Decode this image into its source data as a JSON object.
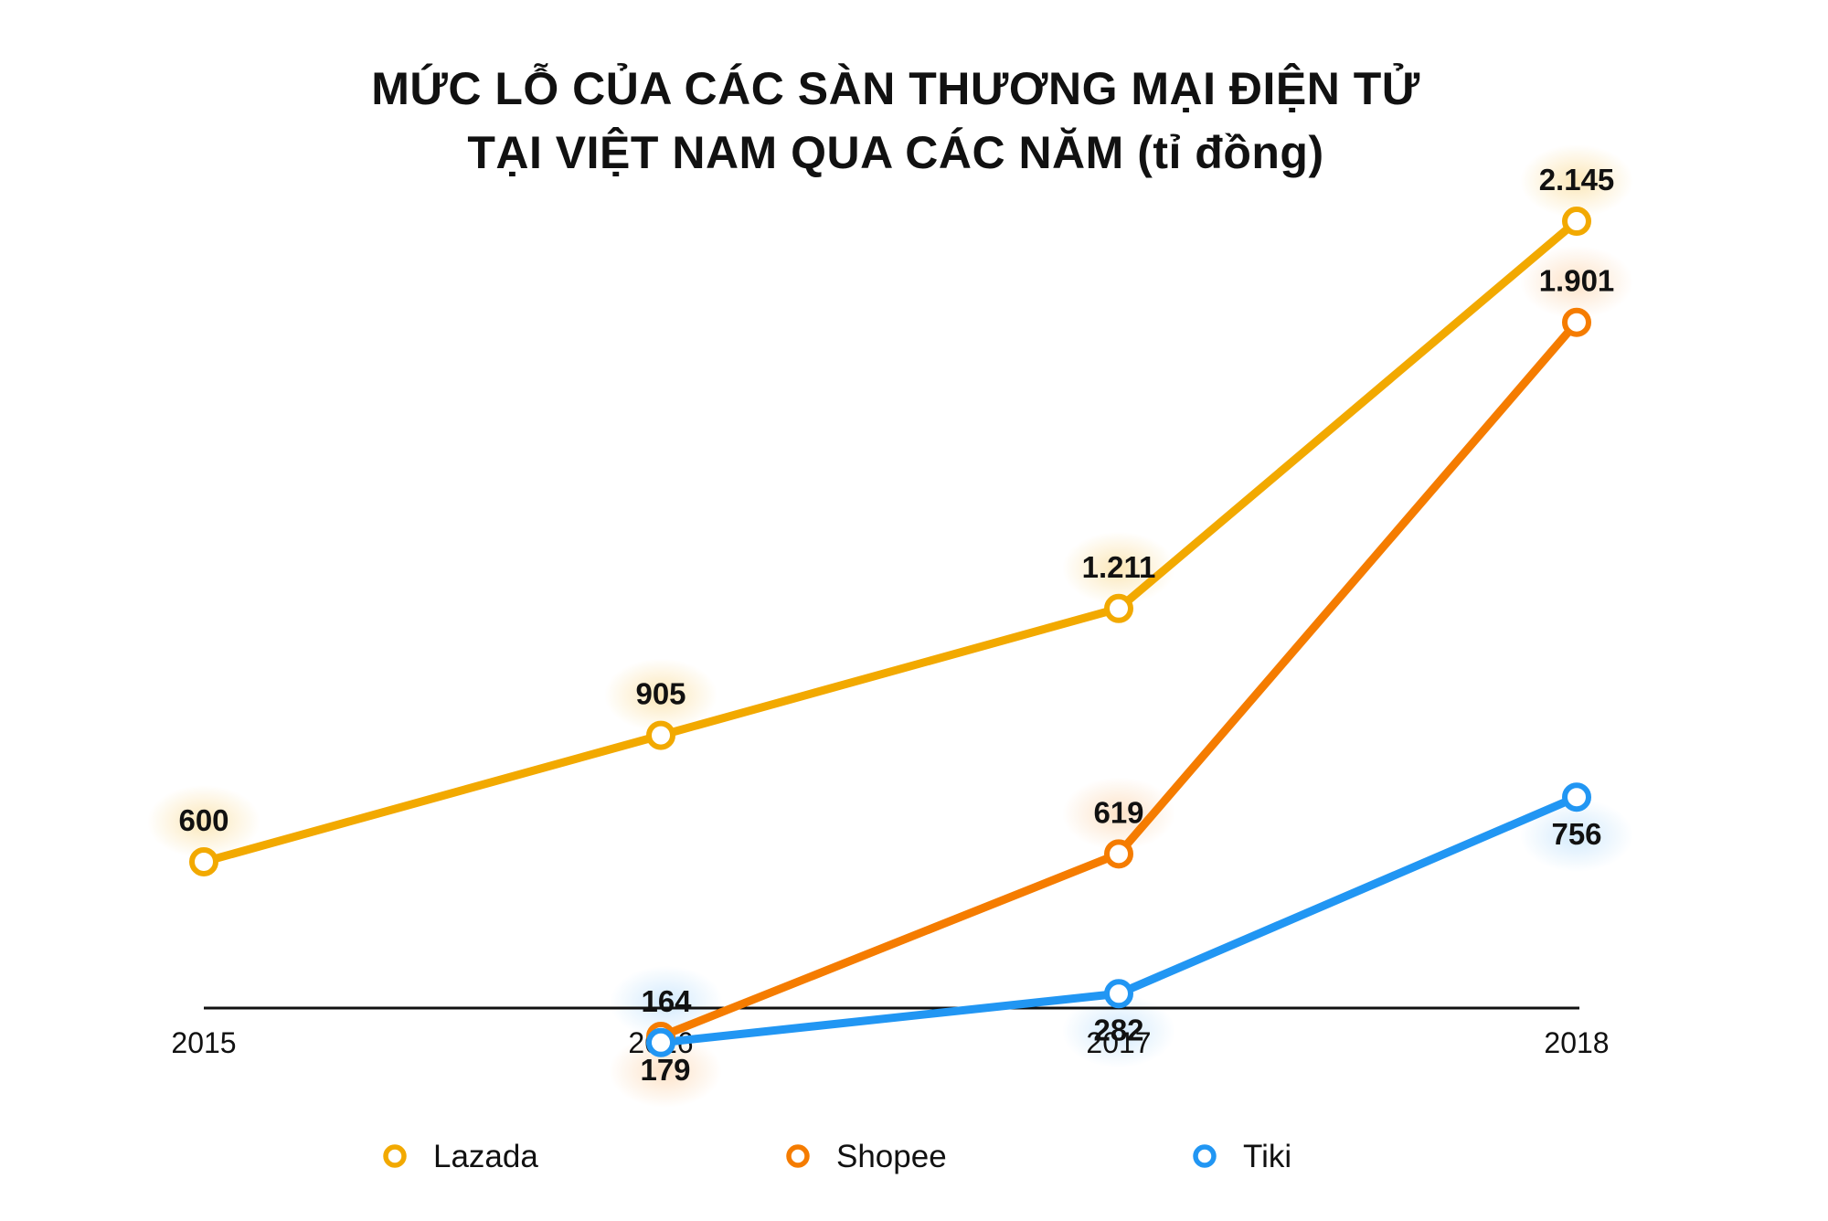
{
  "chart_data": {
    "type": "line",
    "title_lines": [
      "MỨC LỖ CỦA CÁC SÀN THƯƠNG MẠI ĐIỆN TỬ",
      "TẠI VIỆT NAM QUA CÁC NĂM (tỉ đồng)"
    ],
    "x": [
      "2015",
      "2016",
      "2017",
      "2018"
    ],
    "ylim": [
      0,
      2300
    ],
    "series": [
      {
        "name": "Lazada",
        "color": "#F2A900",
        "values": [
          600,
          905,
          1211,
          2145
        ],
        "labels": [
          "600",
          "905",
          "1.211",
          "2.145"
        ]
      },
      {
        "name": "Shopee",
        "color": "#F57C00",
        "values": [
          null,
          179,
          619,
          1901
        ],
        "labels": [
          null,
          "179",
          "619",
          "1.901"
        ]
      },
      {
        "name": "Tiki",
        "color": "#2196F3",
        "values": [
          null,
          164,
          282,
          756
        ],
        "labels": [
          null,
          "164",
          "282",
          "756"
        ]
      }
    ],
    "legend_position": "bottom",
    "grid": false
  }
}
